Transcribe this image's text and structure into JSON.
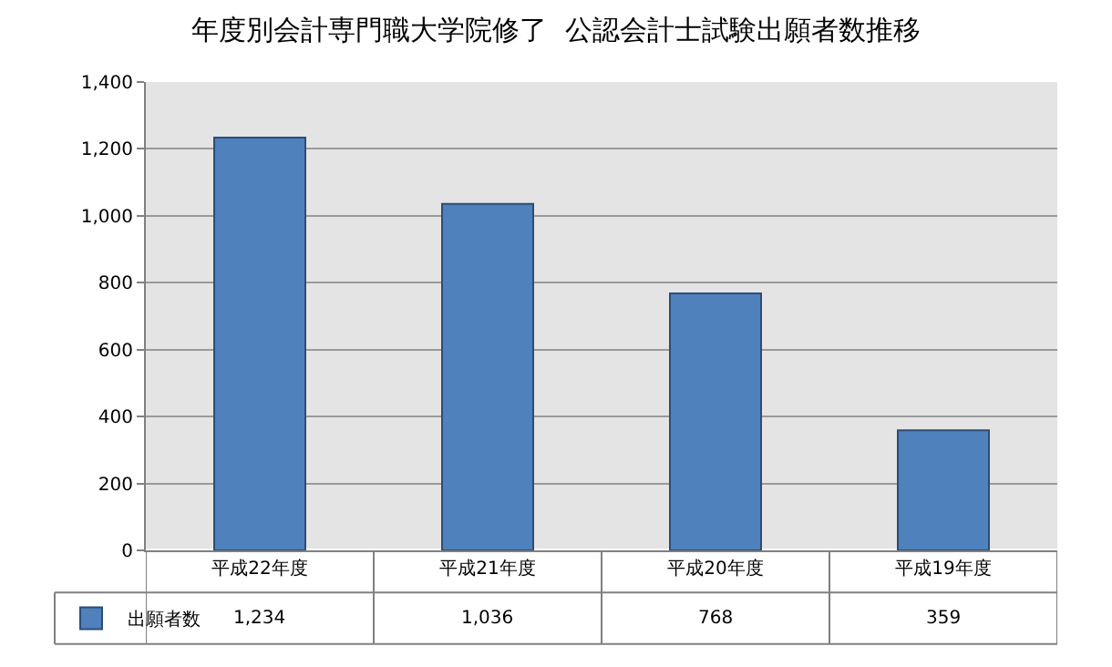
{
  "chart_data": {
    "type": "bar",
    "title": "年度別会計専門職大学院修了  公認会計士試験出願者数推移",
    "categories": [
      "平成22年度",
      "平成21年度",
      "平成20年度",
      "平成19年度"
    ],
    "series": [
      {
        "name": "出願者数",
        "color": "#4f81bd",
        "values": [
          1234,
          1036,
          768,
          359
        ],
        "value_labels": [
          "1,234",
          "1,036",
          "768",
          "359"
        ]
      }
    ],
    "ylim": [
      0,
      1400
    ],
    "yticks": [
      0,
      200,
      400,
      600,
      800,
      {
        "value": 1000,
        "label": "1,000"
      },
      {
        "value": 1200,
        "label": "1,200"
      },
      {
        "value": 1400,
        "label": "1,400"
      }
    ],
    "grid": "y",
    "legend": "bottom left"
  }
}
